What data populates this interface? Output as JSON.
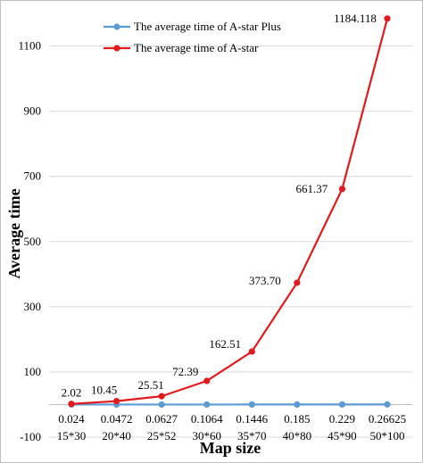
{
  "chart_data": {
    "type": "line",
    "xlabel": "Map size",
    "ylabel": "Average time",
    "categories": [
      "15*30",
      "20*40",
      "25*52",
      "30*60",
      "35*70",
      "40*80",
      "45*90",
      "50*100"
    ],
    "ylim": [
      -100,
      1200
    ],
    "yticks": [
      -100,
      100,
      300,
      500,
      700,
      900,
      1100
    ],
    "grid": "horizontal",
    "legend_position": "top-left",
    "series": [
      {
        "name": "The average time of A-star Plus",
        "color": "#5b9bd5",
        "values": [
          0.024,
          0.0472,
          0.0627,
          0.1064,
          0.1446,
          0.185,
          0.229,
          0.26625
        ],
        "labels": [
          "0.024",
          "0.0472",
          "0.0627",
          "0.1064",
          "0.1446",
          "0.185",
          "0.229",
          "0.26625"
        ]
      },
      {
        "name": "The average time of A-star",
        "color": "#e31a1c",
        "values": [
          2.02,
          10.45,
          25.51,
          72.39,
          162.51,
          373.7,
          661.37,
          1184.118
        ],
        "labels": [
          "2.02",
          "10.45",
          "25.51",
          "72.39",
          "162.51",
          "373.70",
          "661.37",
          "1184.118"
        ]
      }
    ]
  }
}
